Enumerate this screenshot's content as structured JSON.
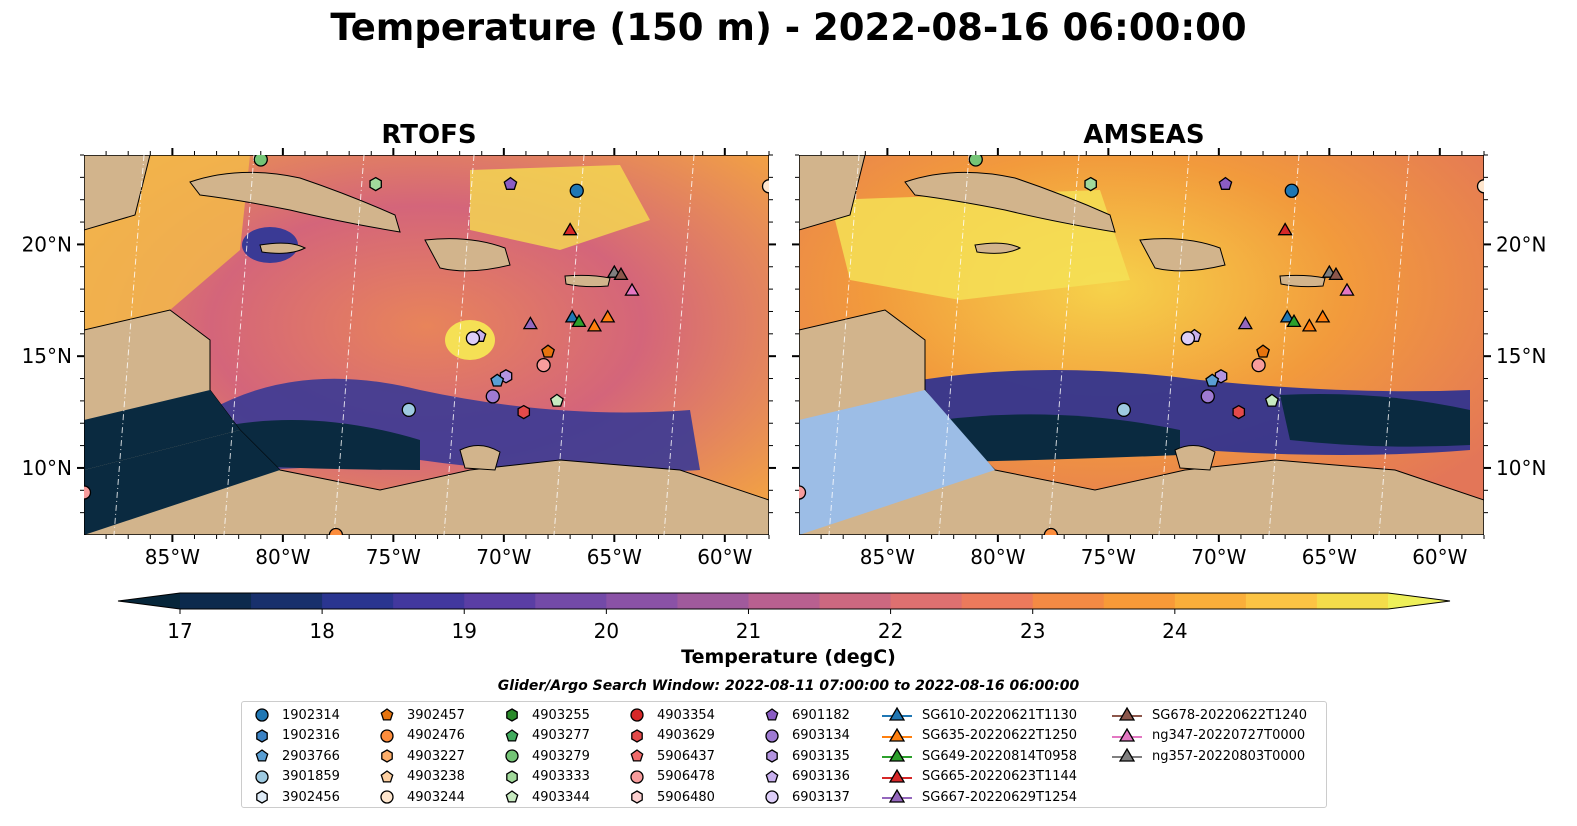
{
  "title": "Temperature (150 m) - 2022-08-16 06:00:00",
  "panels": [
    {
      "title": "RTOFS"
    },
    {
      "title": "AMSEAS"
    }
  ],
  "map": {
    "lon_range": [
      -89,
      -58
    ],
    "lat_range": [
      7,
      24
    ],
    "lon_ticks": [
      "85°W",
      "80°W",
      "75°W",
      "70°W",
      "65°W",
      "60°W"
    ],
    "lat_ticks": [
      "20°N",
      "15°N",
      "10°N"
    ],
    "colors": {
      "land": "#d2b48c",
      "shelf": "#9cbde6",
      "ocean_mid": "#d96a6a"
    }
  },
  "colorbar": {
    "ticks": [
      "17",
      "18",
      "19",
      "20",
      "21",
      "22",
      "23",
      "24"
    ],
    "label": "Temperature (degC)",
    "colors": [
      "#06263a",
      "#0c2a4d",
      "#18306c",
      "#2a3590",
      "#42389e",
      "#5a3ea4",
      "#734aa8",
      "#8a52a6",
      "#a05a9c",
      "#b86090",
      "#cc6880",
      "#de7070",
      "#ec7a5c",
      "#f48a44",
      "#f89a38",
      "#faae3a",
      "#fcc444",
      "#f4dc4a",
      "#eef05a"
    ]
  },
  "search_window": "Glider/Argo Search Window: 2022-08-11 07:00:00 to 2022-08-16 06:00:00",
  "legend": [
    {
      "label": "1902314",
      "marker": "circle",
      "color": "#1f77b4"
    },
    {
      "label": "1902316",
      "marker": "hexagon",
      "color": "#3b82c4"
    },
    {
      "label": "2903766",
      "marker": "pentagon",
      "color": "#5a9fd4"
    },
    {
      "label": "3901859",
      "marker": "circle",
      "color": "#9ecae1"
    },
    {
      "label": "3902456",
      "marker": "hexagon",
      "color": "#deebf7"
    },
    {
      "label": "3902457",
      "marker": "pentagon",
      "color": "#e6740e"
    },
    {
      "label": "4902476",
      "marker": "circle",
      "color": "#fd8d3c"
    },
    {
      "label": "4903227",
      "marker": "hexagon",
      "color": "#fdae6b"
    },
    {
      "label": "4903238",
      "marker": "pentagon",
      "color": "#fdd0a2"
    },
    {
      "label": "4903244",
      "marker": "circle",
      "color": "#fee6ce"
    },
    {
      "label": "4903255",
      "marker": "hexagon",
      "color": "#2a8a2a"
    },
    {
      "label": "4903277",
      "marker": "pentagon",
      "color": "#41ab5d"
    },
    {
      "label": "4903279",
      "marker": "circle",
      "color": "#74c476"
    },
    {
      "label": "4903333",
      "marker": "hexagon",
      "color": "#a1d99b"
    },
    {
      "label": "4903344",
      "marker": "pentagon",
      "color": "#c7e9c0"
    },
    {
      "label": "4903354",
      "marker": "circle",
      "color": "#d62728"
    },
    {
      "label": "4903629",
      "marker": "hexagon",
      "color": "#e34a4a"
    },
    {
      "label": "5906437",
      "marker": "pentagon",
      "color": "#f06b6b"
    },
    {
      "label": "5906478",
      "marker": "circle",
      "color": "#f79c9c"
    },
    {
      "label": "5906480",
      "marker": "hexagon",
      "color": "#fcd0d0"
    },
    {
      "label": "6901182",
      "marker": "pentagon",
      "color": "#8a5cc4"
    },
    {
      "label": "6903134",
      "marker": "circle",
      "color": "#9e7ad2"
    },
    {
      "label": "6903135",
      "marker": "hexagon",
      "color": "#b394e0"
    },
    {
      "label": "6903136",
      "marker": "pentagon",
      "color": "#c8b0ee"
    },
    {
      "label": "6903137",
      "marker": "circle",
      "color": "#ddcef8"
    },
    {
      "label": "SG610-20220621T1130",
      "marker": "triangle",
      "color": "#1f77b4"
    },
    {
      "label": "SG635-20220622T1250",
      "marker": "triangle",
      "color": "#ff7f0e"
    },
    {
      "label": "SG649-20220814T0958",
      "marker": "triangle",
      "color": "#2ca02c"
    },
    {
      "label": "SG665-20220623T1144",
      "marker": "triangle",
      "color": "#d62728"
    },
    {
      "label": "SG667-20220629T1254",
      "marker": "triangle",
      "color": "#9467bd"
    },
    {
      "label": "SG678-20220622T1240",
      "marker": "triangle",
      "color": "#8c564b"
    },
    {
      "label": "ng347-20220727T0000",
      "marker": "triangle",
      "color": "#e377c2"
    },
    {
      "label": "ng357-20220803T0000",
      "marker": "triangle",
      "color": "#7f7f7f"
    }
  ],
  "observations": [
    {
      "id": "1902314",
      "lon": -66.7,
      "lat": 22.4
    },
    {
      "id": "SG665-20220623T1144",
      "lon": -67.0,
      "lat": 20.6
    },
    {
      "id": "6901182",
      "lon": -69.7,
      "lat": 22.7
    },
    {
      "id": "4903279",
      "lon": -81.0,
      "lat": 23.8
    },
    {
      "id": "4903333",
      "lon": -75.8,
      "lat": 22.7
    },
    {
      "id": "4903244",
      "lon": -58.0,
      "lat": 22.6
    },
    {
      "id": "ng357-20220803T0000",
      "lon": -65.0,
      "lat": 18.7
    },
    {
      "id": "SG678-20220622T1240",
      "lon": -64.7,
      "lat": 18.6
    },
    {
      "id": "ng347-20220727T0000",
      "lon": -64.2,
      "lat": 17.9
    },
    {
      "id": "6903136",
      "lon": -71.1,
      "lat": 15.9
    },
    {
      "id": "6903137",
      "lon": -71.4,
      "lat": 15.8
    },
    {
      "id": "SG667-20220629T1254",
      "lon": -68.8,
      "lat": 16.4
    },
    {
      "id": "SG610-20220621T1130",
      "lon": -66.9,
      "lat": 16.7
    },
    {
      "id": "SG649-20220814T0958",
      "lon": -66.6,
      "lat": 16.5
    },
    {
      "id": "SG635-20220622T1250",
      "lon": -65.9,
      "lat": 16.3
    },
    {
      "id": "SG635-20220622T1250",
      "lon": -65.3,
      "lat": 16.7
    },
    {
      "id": "3902457",
      "lon": -68.0,
      "lat": 15.2
    },
    {
      "id": "5906478",
      "lon": -68.2,
      "lat": 14.6
    },
    {
      "id": "6903135",
      "lon": -69.9,
      "lat": 14.1
    },
    {
      "id": "2903766",
      "lon": -70.3,
      "lat": 13.9
    },
    {
      "id": "6903134",
      "lon": -70.5,
      "lat": 13.2
    },
    {
      "id": "4903344",
      "lon": -67.6,
      "lat": 13.0
    },
    {
      "id": "4903629",
      "lon": -69.1,
      "lat": 12.5
    },
    {
      "id": "3901859",
      "lon": -74.3,
      "lat": 12.6
    },
    {
      "id": "5906478",
      "lon": -89.0,
      "lat": 8.9
    },
    {
      "id": "4902476",
      "lon": -77.6,
      "lat": 7.0
    }
  ]
}
